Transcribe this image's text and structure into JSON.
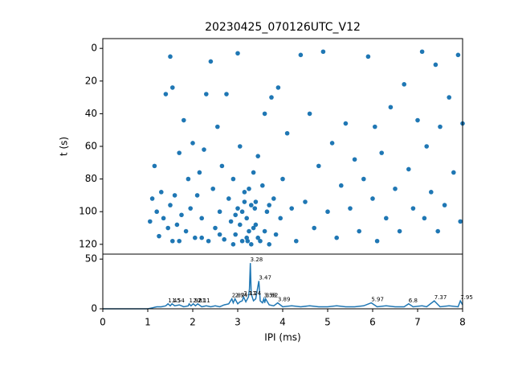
{
  "chart_data": [
    {
      "type": "scatter",
      "title": "20230425_070126UTC_V12",
      "y_label": "t (s)",
      "color": "#1f77b4",
      "xlim": [
        0,
        8
      ],
      "ylim": [
        126,
        -6
      ],
      "yticks": [
        0,
        20,
        40,
        60,
        80,
        100,
        120
      ],
      "x": [
        1.05,
        1.1,
        1.15,
        1.2,
        1.25,
        1.3,
        1.35,
        1.4,
        1.45,
        1.5,
        1.5,
        1.55,
        1.55,
        1.6,
        1.65,
        1.7,
        1.75,
        1.8,
        1.85,
        1.9,
        1.95,
        2.0,
        2.05,
        2.1,
        2.15,
        2.2,
        2.25,
        2.3,
        2.35,
        2.4,
        2.45,
        2.5,
        2.55,
        2.6,
        2.65,
        2.7,
        2.75,
        2.8,
        2.85,
        2.9,
        2.95,
        3.0,
        3.0,
        3.05,
        3.1,
        3.15,
        3.2,
        3.25,
        3.3,
        3.35,
        3.4,
        3.45,
        3.5,
        3.55,
        3.6,
        3.65,
        3.7,
        3.75,
        3.8,
        3.85,
        3.9,
        3.95,
        4.0,
        4.1,
        4.2,
        4.3,
        4.4,
        4.5,
        4.6,
        4.7,
        4.8,
        4.9,
        5.0,
        5.1,
        5.2,
        5.3,
        5.4,
        5.5,
        5.6,
        5.7,
        5.8,
        5.9,
        6.0,
        6.05,
        6.1,
        6.2,
        6.3,
        6.4,
        6.5,
        6.6,
        6.7,
        6.8,
        6.9,
        7.0,
        7.1,
        7.15,
        7.2,
        7.3,
        7.4,
        7.45,
        7.5,
        7.6,
        7.7,
        7.8,
        7.9,
        7.95,
        8.0,
        3.2,
        3.3,
        3.1,
        3.4,
        3.25,
        2.9,
        2.6,
        3.35,
        3.15,
        3.45,
        2.95,
        3.05,
        3.38,
        3.22,
        1.7,
        2.2,
        3.6,
        3.7
      ],
      "values": [
        106,
        92,
        72,
        100,
        115,
        88,
        104,
        28,
        110,
        5,
        96,
        24,
        118,
        90,
        108,
        64,
        102,
        44,
        112,
        80,
        98,
        58,
        116,
        90,
        76,
        104,
        62,
        28,
        118,
        8,
        86,
        110,
        48,
        100,
        72,
        117,
        28,
        92,
        106,
        80,
        114,
        3,
        98,
        60,
        118,
        88,
        104,
        112,
        96,
        76,
        108,
        66,
        118,
        84,
        40,
        100,
        120,
        30,
        92,
        114,
        24,
        104,
        80,
        52,
        98,
        118,
        4,
        94,
        40,
        110,
        72,
        2,
        100,
        58,
        116,
        84,
        46,
        98,
        68,
        112,
        80,
        5,
        92,
        48,
        118,
        64,
        104,
        36,
        86,
        112,
        22,
        74,
        98,
        44,
        2,
        104,
        60,
        88,
        10,
        112,
        48,
        96,
        30,
        76,
        4,
        106,
        46,
        116,
        120,
        100,
        94,
        86,
        120,
        114,
        110,
        94,
        116,
        102,
        108,
        98,
        118,
        118,
        116,
        112,
        96
      ]
    },
    {
      "type": "line",
      "x_label": "IPI (ms)",
      "color": "#1f77b4",
      "xlim": [
        0,
        8
      ],
      "xticks": [
        0,
        1,
        2,
        3,
        4,
        5,
        6,
        7,
        8
      ],
      "ylim": [
        0,
        55
      ],
      "yticks": [
        0,
        50
      ],
      "x": [
        0,
        0.2,
        0.4,
        0.6,
        0.8,
        1.0,
        1.1,
        1.2,
        1.3,
        1.4,
        1.45,
        1.5,
        1.54,
        1.6,
        1.7,
        1.8,
        1.9,
        1.92,
        1.96,
        2.01,
        2.06,
        2.11,
        2.2,
        2.3,
        2.4,
        2.5,
        2.6,
        2.7,
        2.8,
        2.87,
        2.9,
        2.94,
        3.0,
        3.05,
        3.1,
        3.13,
        3.18,
        3.24,
        3.26,
        3.28,
        3.3,
        3.35,
        3.4,
        3.47,
        3.5,
        3.55,
        3.58,
        3.6,
        3.62,
        3.7,
        3.8,
        3.89,
        4.0,
        4.2,
        4.4,
        4.6,
        4.8,
        5.0,
        5.2,
        5.4,
        5.6,
        5.8,
        5.97,
        6.1,
        6.3,
        6.5,
        6.7,
        6.8,
        6.9,
        7.1,
        7.2,
        7.37,
        7.5,
        7.7,
        7.9,
        7.95,
        8.0
      ],
      "values": [
        0,
        0,
        0,
        0,
        0,
        0,
        1,
        2,
        2,
        3,
        5,
        3,
        5,
        3,
        4,
        2,
        3,
        5,
        3,
        5,
        3,
        5,
        2,
        3,
        2,
        3,
        2,
        4,
        5,
        10,
        6,
        10,
        5,
        7,
        8,
        12,
        7,
        12,
        20,
        46,
        15,
        8,
        10,
        28,
        8,
        6,
        10,
        6,
        10,
        4,
        3,
        6,
        2,
        3,
        2,
        3,
        2,
        2,
        3,
        2,
        2,
        3,
        6,
        2,
        3,
        2,
        2,
        5,
        2,
        3,
        2,
        8,
        2,
        3,
        2,
        8,
        4
      ],
      "peaks": [
        {
          "x": 1.45,
          "y": 5
        },
        {
          "x": 1.54,
          "y": 5
        },
        {
          "x": 1.92,
          "y": 5
        },
        {
          "x": 2.01,
          "y": 5
        },
        {
          "x": 2.11,
          "y": 5
        },
        {
          "x": 2.87,
          "y": 10
        },
        {
          "x": 2.94,
          "y": 10
        },
        {
          "x": 3.13,
          "y": 12
        },
        {
          "x": 3.24,
          "y": 12
        },
        {
          "x": 3.28,
          "y": 46
        },
        {
          "x": 3.47,
          "y": 28
        },
        {
          "x": 3.58,
          "y": 10
        },
        {
          "x": 3.62,
          "y": 10
        },
        {
          "x": 3.89,
          "y": 6
        },
        {
          "x": 5.97,
          "y": 6
        },
        {
          "x": 6.8,
          "y": 5
        },
        {
          "x": 7.37,
          "y": 8
        },
        {
          "x": 7.95,
          "y": 8
        }
      ]
    }
  ]
}
